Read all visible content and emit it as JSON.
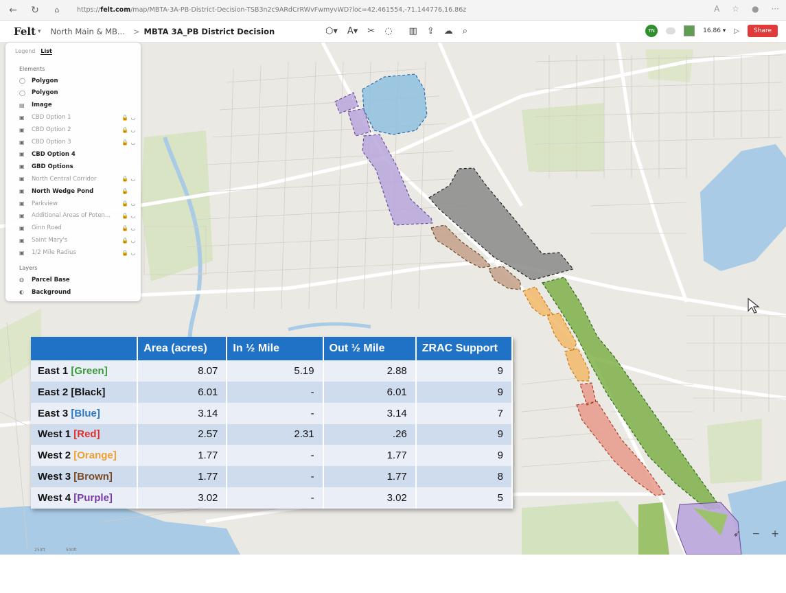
{
  "browser": {
    "url_prefix": "https://",
    "url_host": "felt.com",
    "url_path": "/map/MBTA-3A-PB-District-Decision-TSB3n2c9ARdCrRWvFwmyvWD?loc=42.461554,-71.144776,16.86z"
  },
  "toolbar": {
    "logo": "Felt",
    "project": "North Main & MB...",
    "separator": ">",
    "map_title": "MBTA 3A_PB District Decision",
    "avatar_initials": "TN",
    "zoom": "16.86",
    "share_label": "Share"
  },
  "panel": {
    "tab_legend": "Legend",
    "tab_list": "List",
    "elements_title": "Elements",
    "layers_title": "Layers",
    "elements": [
      {
        "icon": "polygon-icon",
        "glyph": "◯",
        "label": "Polygon",
        "style": "strong",
        "lock": "",
        "eye": ""
      },
      {
        "icon": "polygon-icon",
        "glyph": "◯",
        "label": "Polygon",
        "style": "strong",
        "lock": "",
        "eye": ""
      },
      {
        "icon": "image-icon",
        "glyph": "▤",
        "label": "Image",
        "style": "strong",
        "lock": "",
        "eye": ""
      },
      {
        "icon": "group-icon",
        "glyph": "▣",
        "label": "CBD Option 1",
        "style": "dim",
        "lock": "🔒",
        "eye": "◡"
      },
      {
        "icon": "group-icon",
        "glyph": "▣",
        "label": "CBD Option 2",
        "style": "dim",
        "lock": "🔒",
        "eye": "◡"
      },
      {
        "icon": "group-icon",
        "glyph": "▣",
        "label": "CBD Option 3",
        "style": "dim",
        "lock": "🔒",
        "eye": "◡"
      },
      {
        "icon": "group-icon",
        "glyph": "▣",
        "label": "CBD Option 4",
        "style": "strong",
        "lock": "",
        "eye": ""
      },
      {
        "icon": "group-icon",
        "glyph": "▣",
        "label": "GBD Options",
        "style": "strong",
        "lock": "",
        "eye": ""
      },
      {
        "icon": "group-icon",
        "glyph": "▣",
        "label": "North Central Corridor",
        "style": "dim",
        "lock": "🔒",
        "eye": "◡"
      },
      {
        "icon": "group-icon",
        "glyph": "▣",
        "label": "North Wedge Pond",
        "style": "strong",
        "lock": "🔒",
        "eye": ""
      },
      {
        "icon": "group-icon",
        "glyph": "▣",
        "label": "Parkview",
        "style": "dim",
        "lock": "🔒",
        "eye": "◡"
      },
      {
        "icon": "group-icon",
        "glyph": "▣",
        "label": "Additional Areas of Poten...",
        "style": "dim",
        "lock": "🔒",
        "eye": "◡"
      },
      {
        "icon": "group-icon",
        "glyph": "▣",
        "label": "Ginn Road",
        "style": "dim",
        "lock": "🔒",
        "eye": "◡"
      },
      {
        "icon": "group-icon",
        "glyph": "▣",
        "label": "Saint Mary's",
        "style": "dim",
        "lock": "🔒",
        "eye": "◡"
      },
      {
        "icon": "group-icon",
        "glyph": "▣",
        "label": "1/2 Mile Radius",
        "style": "dim",
        "lock": "🔒",
        "eye": "◡"
      }
    ],
    "layers": [
      {
        "icon": "layer-icon",
        "glyph": "◍",
        "label": "Parcel Base"
      },
      {
        "icon": "layer-icon",
        "glyph": "◐",
        "label": "Background"
      }
    ]
  },
  "table": {
    "headers": [
      "",
      "Area (acres)",
      "In ½ Mile",
      "Out ½ Mile",
      "ZRAC Support"
    ],
    "rows": [
      {
        "name": "East 1",
        "tag": "[Green]",
        "tag_color": "#3a9a3a",
        "area": "8.07",
        "in": "5.19",
        "out": "2.88",
        "zrac": "9"
      },
      {
        "name": "East 2",
        "tag": "[Black]",
        "tag_color": "#111111",
        "area": "6.01",
        "in": "-",
        "out": "6.01",
        "zrac": "9"
      },
      {
        "name": "East 3",
        "tag": "[Blue]",
        "tag_color": "#2e78c8",
        "area": "3.14",
        "in": "-",
        "out": "3.14",
        "zrac": "7"
      },
      {
        "name": "West 1",
        "tag": "[Red]",
        "tag_color": "#e0302a",
        "area": "2.57",
        "in": "2.31",
        "out": ".26",
        "zrac": "9"
      },
      {
        "name": "West 2",
        "tag": "[Orange]",
        "tag_color": "#f0a030",
        "area": "1.77",
        "in": "-",
        "out": "1.77",
        "zrac": "9"
      },
      {
        "name": "West 3",
        "tag": "[Brown]",
        "tag_color": "#7a4a22",
        "area": "1.77",
        "in": "-",
        "out": "1.77",
        "zrac": "8"
      },
      {
        "name": "West 4",
        "tag": "[Purple]",
        "tag_color": "#7a3aa8",
        "area": "3.02",
        "in": "-",
        "out": "3.02",
        "zrac": "5"
      }
    ]
  },
  "map": {
    "scale_labels": [
      "250ft",
      "500ft"
    ],
    "zone_colors": {
      "east1_green": "#7fb04a",
      "east2_black": "#8a8a8a",
      "east3_blue": "#8fbfe0",
      "west1_red": "#e69a8a",
      "west2_orange": "#f2b86a",
      "west3_brown": "#c4a08a",
      "west4_purple": "#b9a6dc"
    }
  }
}
